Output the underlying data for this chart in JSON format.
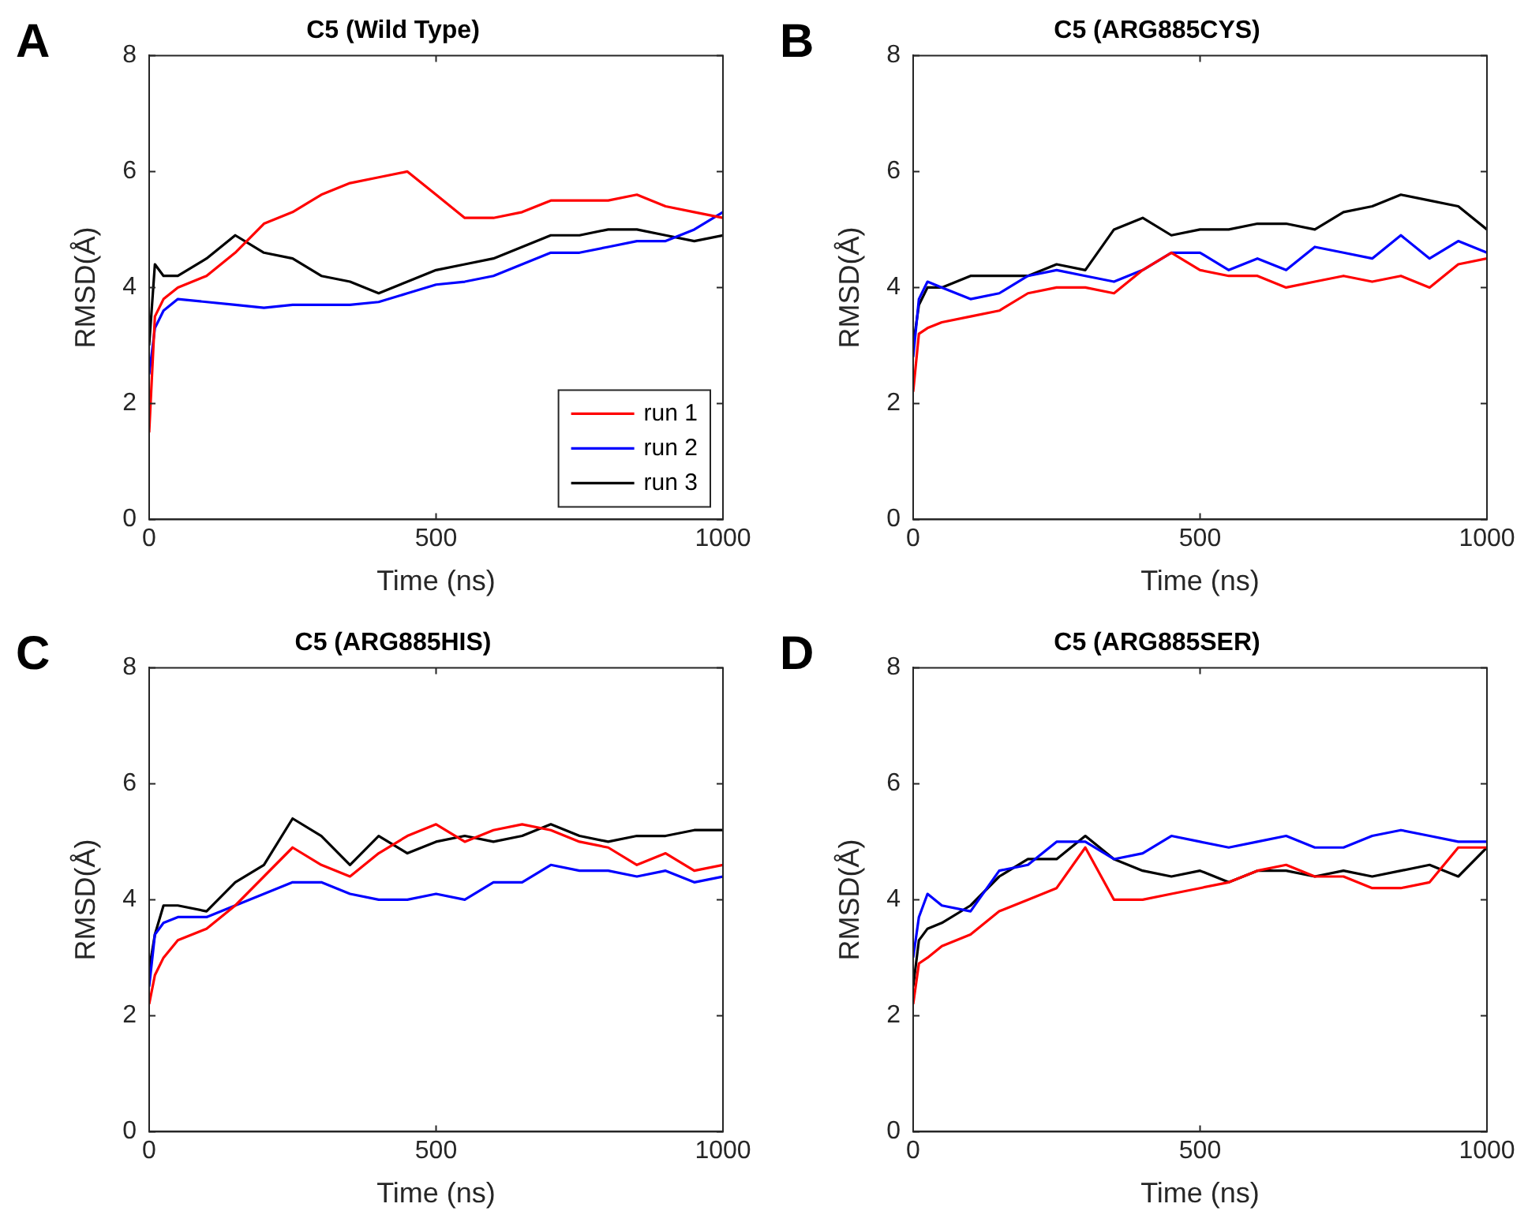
{
  "chart_data": [
    {
      "type": "line",
      "title": "C5 (Wild Type)",
      "xlabel": "Time (ns)",
      "ylabel": "RMSD(Å)",
      "annotations": [
        "A"
      ],
      "x": [
        0,
        10,
        25,
        50,
        100,
        150,
        200,
        250,
        300,
        350,
        400,
        450,
        500,
        550,
        600,
        650,
        700,
        750,
        800,
        850,
        900,
        950,
        1000
      ],
      "xlim": [
        0,
        1000
      ],
      "xticks": [
        0,
        500,
        1000
      ],
      "ylim": [
        0,
        8
      ],
      "yticks": [
        0,
        2,
        4,
        6,
        8
      ],
      "legend": "bottom right",
      "marker": "none",
      "line_style": "solid",
      "series": [
        {
          "name": "run 1",
          "color": "#ff0000",
          "values": [
            1.5,
            3.5,
            3.8,
            4.0,
            4.2,
            4.6,
            5.1,
            5.3,
            5.6,
            5.8,
            5.9,
            6.0,
            5.6,
            5.2,
            5.2,
            5.3,
            5.5,
            5.5,
            5.5,
            5.6,
            5.4,
            5.3,
            5.2
          ]
        },
        {
          "name": "run 2",
          "color": "#0000ff",
          "values": [
            2.5,
            3.3,
            3.6,
            3.8,
            3.75,
            3.7,
            3.65,
            3.7,
            3.7,
            3.7,
            3.75,
            3.9,
            4.05,
            4.1,
            4.2,
            4.4,
            4.6,
            4.6,
            4.7,
            4.8,
            4.8,
            5.0,
            5.3
          ]
        },
        {
          "name": "run 3",
          "color": "#000000",
          "values": [
            3.0,
            4.4,
            4.2,
            4.2,
            4.5,
            4.9,
            4.6,
            4.5,
            4.2,
            4.1,
            3.9,
            4.1,
            4.3,
            4.4,
            4.5,
            4.7,
            4.9,
            4.9,
            5.0,
            5.0,
            4.9,
            4.8,
            4.9
          ]
        }
      ]
    },
    {
      "type": "line",
      "title": "C5 (ARG885CYS)",
      "xlabel": "Time (ns)",
      "ylabel": "RMSD(Å)",
      "annotations": [
        "B"
      ],
      "x": [
        0,
        10,
        25,
        50,
        100,
        150,
        200,
        250,
        300,
        350,
        400,
        450,
        500,
        550,
        600,
        650,
        700,
        750,
        800,
        850,
        900,
        950,
        1000
      ],
      "xlim": [
        0,
        1000
      ],
      "xticks": [
        0,
        500,
        1000
      ],
      "ylim": [
        0,
        8
      ],
      "yticks": [
        0,
        2,
        4,
        6,
        8
      ],
      "marker": "none",
      "line_style": "solid",
      "series": [
        {
          "color": "#ff0000",
          "values": [
            2.2,
            3.2,
            3.3,
            3.4,
            3.5,
            3.6,
            3.9,
            4.0,
            4.0,
            3.9,
            4.3,
            4.6,
            4.3,
            4.2,
            4.2,
            4.0,
            4.1,
            4.2,
            4.1,
            4.2,
            4.0,
            4.4,
            4.5
          ]
        },
        {
          "color": "#0000ff",
          "values": [
            2.8,
            3.8,
            4.1,
            4.0,
            3.8,
            3.9,
            4.2,
            4.3,
            4.2,
            4.1,
            4.3,
            4.6,
            4.6,
            4.3,
            4.5,
            4.3,
            4.7,
            4.6,
            4.5,
            4.9,
            4.5,
            4.8,
            4.6
          ]
        },
        {
          "color": "#000000",
          "values": [
            3.0,
            3.7,
            4.0,
            4.0,
            4.2,
            4.2,
            4.2,
            4.4,
            4.3,
            5.0,
            5.2,
            4.9,
            5.0,
            5.0,
            5.1,
            5.1,
            5.0,
            5.3,
            5.4,
            5.6,
            5.5,
            5.4,
            5.0
          ]
        }
      ]
    },
    {
      "type": "line",
      "title": "C5 (ARG885HIS)",
      "xlabel": "Time (ns)",
      "ylabel": "RMSD(Å)",
      "annotations": [
        "C"
      ],
      "x": [
        0,
        10,
        25,
        50,
        100,
        150,
        200,
        250,
        300,
        350,
        400,
        450,
        500,
        550,
        600,
        650,
        700,
        750,
        800,
        850,
        900,
        950,
        1000
      ],
      "xlim": [
        0,
        1000
      ],
      "xticks": [
        0,
        500,
        1000
      ],
      "ylim": [
        0,
        8
      ],
      "yticks": [
        0,
        2,
        4,
        6,
        8
      ],
      "marker": "none",
      "line_style": "solid",
      "series": [
        {
          "color": "#ff0000",
          "values": [
            2.2,
            2.7,
            3.0,
            3.3,
            3.5,
            3.9,
            4.4,
            4.9,
            4.6,
            4.4,
            4.8,
            5.1,
            5.3,
            5.0,
            5.2,
            5.3,
            5.2,
            5.0,
            4.9,
            4.6,
            4.8,
            4.5,
            4.6
          ]
        },
        {
          "color": "#0000ff",
          "values": [
            2.5,
            3.4,
            3.6,
            3.7,
            3.7,
            3.9,
            4.1,
            4.3,
            4.3,
            4.1,
            4.0,
            4.0,
            4.1,
            4.0,
            4.3,
            4.3,
            4.6,
            4.5,
            4.5,
            4.4,
            4.5,
            4.3,
            4.4
          ]
        },
        {
          "color": "#000000",
          "values": [
            2.8,
            3.4,
            3.9,
            3.9,
            3.8,
            4.3,
            4.6,
            5.4,
            5.1,
            4.6,
            5.1,
            4.8,
            5.0,
            5.1,
            5.0,
            5.1,
            5.3,
            5.1,
            5.0,
            5.1,
            5.1,
            5.2,
            5.2
          ]
        }
      ]
    },
    {
      "type": "line",
      "title": "C5 (ARG885SER)",
      "xlabel": "Time (ns)",
      "ylabel": "RMSD(Å)",
      "annotations": [
        "D"
      ],
      "x": [
        0,
        10,
        25,
        50,
        100,
        150,
        200,
        250,
        300,
        350,
        400,
        450,
        500,
        550,
        600,
        650,
        700,
        750,
        800,
        850,
        900,
        950,
        1000
      ],
      "xlim": [
        0,
        1000
      ],
      "xticks": [
        0,
        500,
        1000
      ],
      "ylim": [
        0,
        8
      ],
      "yticks": [
        0,
        2,
        4,
        6,
        8
      ],
      "marker": "none",
      "line_style": "solid",
      "series": [
        {
          "color": "#ff0000",
          "values": [
            2.2,
            2.9,
            3.0,
            3.2,
            3.4,
            3.8,
            4.0,
            4.2,
            4.9,
            4.0,
            4.0,
            4.1,
            4.2,
            4.3,
            4.5,
            4.6,
            4.4,
            4.4,
            4.2,
            4.2,
            4.3,
            4.9,
            4.9
          ]
        },
        {
          "color": "#0000ff",
          "values": [
            3.0,
            3.7,
            4.1,
            3.9,
            3.8,
            4.5,
            4.6,
            5.0,
            5.0,
            4.7,
            4.8,
            5.1,
            5.0,
            4.9,
            5.0,
            5.1,
            4.9,
            4.9,
            5.1,
            5.2,
            5.1,
            5.0,
            5.0
          ]
        },
        {
          "color": "#000000",
          "values": [
            2.5,
            3.3,
            3.5,
            3.6,
            3.9,
            4.4,
            4.7,
            4.7,
            5.1,
            4.7,
            4.5,
            4.4,
            4.5,
            4.3,
            4.5,
            4.5,
            4.4,
            4.5,
            4.4,
            4.5,
            4.6,
            4.4,
            4.9
          ]
        }
      ]
    }
  ]
}
